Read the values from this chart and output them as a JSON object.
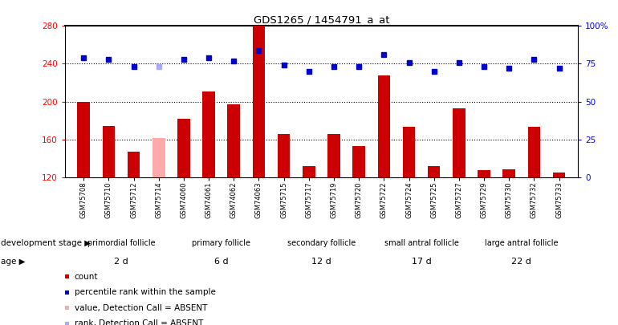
{
  "title": "GDS1265 / 1454791_a_at",
  "samples": [
    "GSM75708",
    "GSM75710",
    "GSM75712",
    "GSM75714",
    "GSM74060",
    "GSM74061",
    "GSM74062",
    "GSM74063",
    "GSM75715",
    "GSM75717",
    "GSM75719",
    "GSM75720",
    "GSM75722",
    "GSM75724",
    "GSM75725",
    "GSM75727",
    "GSM75729",
    "GSM75730",
    "GSM75732",
    "GSM75733"
  ],
  "bar_values": [
    200,
    174,
    147,
    161,
    182,
    211,
    197,
    280,
    166,
    132,
    166,
    153,
    228,
    173,
    132,
    193,
    127,
    128,
    173,
    125
  ],
  "bar_absent": [
    false,
    false,
    false,
    true,
    false,
    false,
    false,
    false,
    false,
    false,
    false,
    false,
    false,
    false,
    false,
    false,
    false,
    false,
    false,
    false
  ],
  "rank_values": [
    79,
    78,
    73,
    73,
    78,
    79,
    77,
    84,
    74,
    70,
    73,
    73,
    81,
    76,
    70,
    76,
    73,
    72,
    78,
    72
  ],
  "rank_absent": [
    false,
    false,
    false,
    true,
    false,
    false,
    false,
    false,
    false,
    false,
    false,
    false,
    false,
    false,
    false,
    false,
    false,
    false,
    false,
    false
  ],
  "ylim_left": [
    120,
    280
  ],
  "ylim_right": [
    0,
    100
  ],
  "yticks_left": [
    120,
    160,
    200,
    240,
    280
  ],
  "yticks_right": [
    0,
    25,
    50,
    75,
    100
  ],
  "ytick_labels_right": [
    "0",
    "25",
    "50",
    "75",
    "100%"
  ],
  "hlines": [
    160,
    200,
    240
  ],
  "groups": [
    {
      "label": "primordial follicle",
      "start": 0,
      "end": 4,
      "color": "#ccffcc",
      "age": "2 d",
      "age_color": "#ffaaff"
    },
    {
      "label": "primary follicle",
      "start": 4,
      "end": 8,
      "color": "#99ee99",
      "age": "6 d",
      "age_color": "#ee99ee"
    },
    {
      "label": "secondary follicle",
      "start": 8,
      "end": 12,
      "color": "#aaffaa",
      "age": "12 d",
      "age_color": "#ffaaff"
    },
    {
      "label": "small antral follicle",
      "start": 12,
      "end": 16,
      "color": "#77dd77",
      "age": "17 d",
      "age_color": "#dd77dd"
    },
    {
      "label": "large antral follicle",
      "start": 16,
      "end": 20,
      "color": "#55cc55",
      "age": "22 d",
      "age_color": "#cc55cc"
    }
  ],
  "bar_color": "#cc0000",
  "bar_absent_color": "#ffaaaa",
  "rank_color": "#0000cc",
  "rank_absent_color": "#aaaaff",
  "bar_width": 0.5,
  "legend_items": [
    {
      "color": "#cc0000",
      "label": "count",
      "row": 0,
      "col": 0
    },
    {
      "color": "#0000cc",
      "label": "percentile rank within the sample",
      "row": 1,
      "col": 0
    },
    {
      "color": "#ffaaaa",
      "label": "value, Detection Call = ABSENT",
      "row": 2,
      "col": 0
    },
    {
      "color": "#aaaaff",
      "label": "rank, Detection Call = ABSENT",
      "row": 3,
      "col": 0
    }
  ],
  "dev_stage_label": "development stage",
  "age_label": "age",
  "background_color": "#ffffff"
}
